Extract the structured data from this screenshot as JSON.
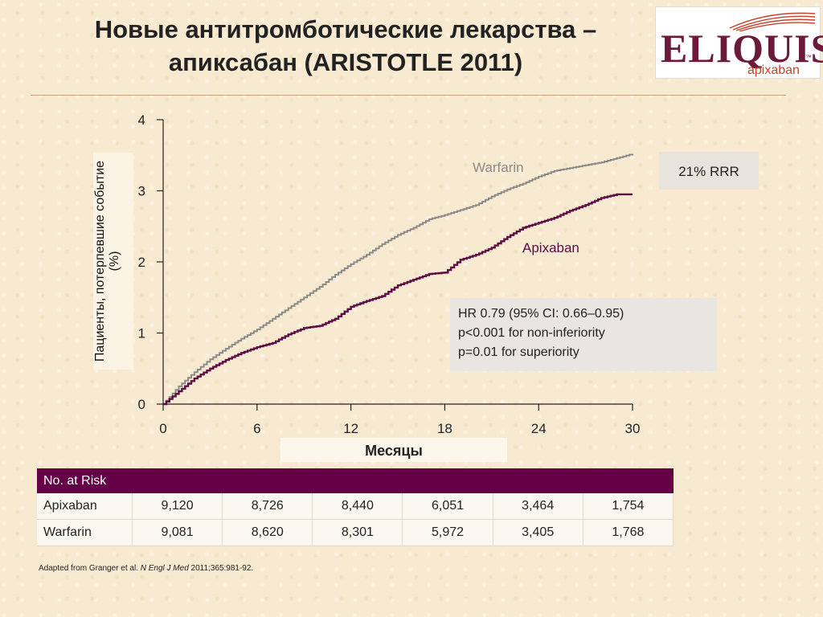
{
  "title": {
    "line1": "Новые антитромботические лекарства –",
    "line2": "апиксабан (ARISTOTLE 2011)"
  },
  "logo": {
    "word": "ELIQUIS",
    "tm": "™",
    "sub": "apixaban"
  },
  "colors": {
    "warfarin": "#8a8a8a",
    "apixaban": "#5d0a45",
    "table_header": "#650046"
  },
  "chart_data": {
    "type": "line",
    "ylabel": "Пациенты, потерпевшие событие (%)",
    "xlabel": "Месяцы",
    "xlim": [
      0,
      30
    ],
    "ylim": [
      0,
      4
    ],
    "x_ticks": [
      0,
      6,
      12,
      18,
      24,
      30
    ],
    "y_ticks": [
      0,
      1,
      2,
      3,
      4
    ],
    "series": [
      {
        "name": "Warfarin",
        "x": [
          0,
          1,
          2,
          3,
          4,
          5,
          6,
          7,
          8,
          9,
          10,
          11,
          12,
          13,
          14,
          15,
          16,
          17,
          18,
          19,
          20,
          21,
          22,
          23,
          24,
          25,
          26,
          27,
          28,
          29,
          30
        ],
        "values": [
          0,
          0.25,
          0.45,
          0.63,
          0.78,
          0.92,
          1.05,
          1.2,
          1.35,
          1.5,
          1.65,
          1.82,
          1.97,
          2.1,
          2.25,
          2.38,
          2.48,
          2.6,
          2.66,
          2.73,
          2.8,
          2.92,
          3.02,
          3.1,
          3.2,
          3.28,
          3.32,
          3.36,
          3.4,
          3.46,
          3.52
        ]
      },
      {
        "name": "Apixaban",
        "x": [
          0,
          1,
          2,
          3,
          4,
          5,
          6,
          7,
          8,
          9,
          10,
          11,
          12,
          13,
          14,
          15,
          16,
          17,
          18,
          19,
          20,
          21,
          22,
          23,
          24,
          25,
          26,
          27,
          28,
          29,
          30
        ],
        "values": [
          0,
          0.18,
          0.36,
          0.5,
          0.62,
          0.72,
          0.8,
          0.86,
          0.98,
          1.07,
          1.1,
          1.2,
          1.37,
          1.45,
          1.52,
          1.67,
          1.75,
          1.83,
          1.85,
          2.03,
          2.1,
          2.2,
          2.35,
          2.48,
          2.55,
          2.62,
          2.72,
          2.8,
          2.9,
          2.95,
          2.95
        ]
      }
    ],
    "annotations": {
      "rrr": "21% RRR",
      "stats_line1": "HR 0.79 (95% CI: 0.66–0.95)",
      "stats_line2": "p<0.001 for non-inferiority",
      "stats_line3": "p=0.01 for superiority"
    }
  },
  "risk_table": {
    "header": "No. at Risk",
    "rows": [
      {
        "label": "Apixaban",
        "values": [
          "9,120",
          "8,726",
          "8,440",
          "6,051",
          "3,464",
          "1,754"
        ]
      },
      {
        "label": "Warfarin",
        "values": [
          "9,081",
          "8,620",
          "8,301",
          "5,972",
          "3,405",
          "1,768"
        ]
      }
    ]
  },
  "citation": {
    "prefix": "Adapted from Granger et al. ",
    "journal": "N Engl J Med",
    "suffix": " 2011;365:981-92."
  }
}
